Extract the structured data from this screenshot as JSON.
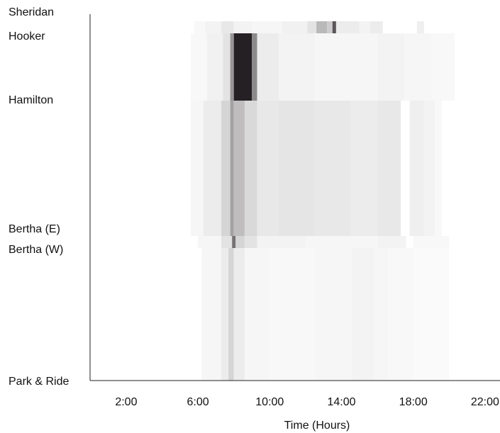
{
  "chart_data": {
    "type": "heatmap",
    "title": "",
    "xlabel": "Time (Hours)",
    "ylabel": "",
    "xlim": [
      0,
      24
    ],
    "x_ticks": [
      {
        "value": 2,
        "label": "2:00"
      },
      {
        "value": 6,
        "label": "6:00"
      },
      {
        "value": 10,
        "label": "10:00"
      },
      {
        "value": 14,
        "label": "14:00"
      },
      {
        "value": 18,
        "label": "18:00"
      },
      {
        "value": 22,
        "label": "22:00"
      }
    ],
    "y_stops": [
      "Sheridan",
      "Hooker",
      "Hamilton",
      "Bertha (E)",
      "Bertha (W)",
      "Park & Ride"
    ],
    "grid": false,
    "color_scale": {
      "low": "#ffffff",
      "high": "#1a1418"
    },
    "segments": [
      {
        "from": "Sheridan",
        "to": "Hooker",
        "cells": [
          {
            "start": 5.8,
            "end": 6.4,
            "value": 0.03
          },
          {
            "start": 6.4,
            "end": 7.3,
            "value": 0.05
          },
          {
            "start": 7.3,
            "end": 8.0,
            "value": 0.1
          },
          {
            "start": 8.0,
            "end": 9.0,
            "value": 0.05
          },
          {
            "start": 9.0,
            "end": 10.7,
            "value": 0.04
          },
          {
            "start": 10.7,
            "end": 12.1,
            "value": 0.06
          },
          {
            "start": 12.1,
            "end": 12.6,
            "value": 0.12
          },
          {
            "start": 12.6,
            "end": 13.2,
            "value": 0.3
          },
          {
            "start": 13.2,
            "end": 13.5,
            "value": 0.22
          },
          {
            "start": 13.5,
            "end": 13.7,
            "value": 0.72
          },
          {
            "start": 13.7,
            "end": 15.0,
            "value": 0.08
          },
          {
            "start": 15.0,
            "end": 15.6,
            "value": 0.05
          },
          {
            "start": 15.6,
            "end": 16.3,
            "value": 0.08
          },
          {
            "start": 16.3,
            "end": 18.2,
            "value": 0.0
          },
          {
            "start": 18.2,
            "end": 18.6,
            "value": 0.07
          }
        ]
      },
      {
        "from": "Hooker",
        "to": "Hamilton",
        "cells": [
          {
            "start": 5.6,
            "end": 6.5,
            "value": 0.03
          },
          {
            "start": 6.5,
            "end": 7.4,
            "value": 0.06
          },
          {
            "start": 7.4,
            "end": 7.8,
            "value": 0.12
          },
          {
            "start": 7.8,
            "end": 8.0,
            "value": 0.45
          },
          {
            "start": 8.0,
            "end": 9.0,
            "value": 0.95
          },
          {
            "start": 9.0,
            "end": 9.3,
            "value": 0.5
          },
          {
            "start": 9.3,
            "end": 10.5,
            "value": 0.08
          },
          {
            "start": 10.5,
            "end": 12.5,
            "value": 0.05
          },
          {
            "start": 12.5,
            "end": 16.0,
            "value": 0.04
          },
          {
            "start": 16.0,
            "end": 17.5,
            "value": 0.05
          },
          {
            "start": 17.5,
            "end": 19.0,
            "value": 0.04
          },
          {
            "start": 19.0,
            "end": 20.3,
            "value": 0.03
          }
        ]
      },
      {
        "from": "Hamilton",
        "to": "Bertha (E)",
        "cells": [
          {
            "start": 5.6,
            "end": 6.3,
            "value": 0.04
          },
          {
            "start": 6.3,
            "end": 7.3,
            "value": 0.08
          },
          {
            "start": 7.3,
            "end": 7.8,
            "value": 0.18
          },
          {
            "start": 7.8,
            "end": 8.0,
            "value": 0.4
          },
          {
            "start": 8.0,
            "end": 8.6,
            "value": 0.28
          },
          {
            "start": 8.6,
            "end": 9.3,
            "value": 0.16
          },
          {
            "start": 9.3,
            "end": 10.5,
            "value": 0.1
          },
          {
            "start": 10.5,
            "end": 12.5,
            "value": 0.11
          },
          {
            "start": 12.5,
            "end": 14.5,
            "value": 0.1
          },
          {
            "start": 14.5,
            "end": 16.0,
            "value": 0.08
          },
          {
            "start": 16.0,
            "end": 17.3,
            "value": 0.1
          },
          {
            "start": 17.3,
            "end": 17.8,
            "value": 0.0
          },
          {
            "start": 17.8,
            "end": 18.6,
            "value": 0.07
          },
          {
            "start": 18.6,
            "end": 19.2,
            "value": 0.05
          },
          {
            "start": 19.2,
            "end": 19.6,
            "value": 0.03
          }
        ]
      },
      {
        "from": "Bertha (E)",
        "to": "Bertha (W)",
        "cells": [
          {
            "start": 6.0,
            "end": 7.3,
            "value": 0.04
          },
          {
            "start": 7.3,
            "end": 7.9,
            "value": 0.12
          },
          {
            "start": 7.9,
            "end": 8.1,
            "value": 0.6
          },
          {
            "start": 8.1,
            "end": 8.6,
            "value": 0.18
          },
          {
            "start": 8.6,
            "end": 9.3,
            "value": 0.12
          },
          {
            "start": 9.3,
            "end": 12.0,
            "value": 0.05
          },
          {
            "start": 12.0,
            "end": 16.0,
            "value": 0.04
          },
          {
            "start": 16.0,
            "end": 17.6,
            "value": 0.05
          },
          {
            "start": 17.6,
            "end": 18.0,
            "value": 0.0
          },
          {
            "start": 18.0,
            "end": 20.0,
            "value": 0.03
          }
        ]
      },
      {
        "from": "Bertha (W)",
        "to": "Park & Ride",
        "cells": [
          {
            "start": 6.2,
            "end": 7.3,
            "value": 0.04
          },
          {
            "start": 7.3,
            "end": 7.7,
            "value": 0.08
          },
          {
            "start": 7.7,
            "end": 8.0,
            "value": 0.18
          },
          {
            "start": 8.0,
            "end": 8.6,
            "value": 0.08
          },
          {
            "start": 8.6,
            "end": 10.0,
            "value": 0.04
          },
          {
            "start": 10.0,
            "end": 12.5,
            "value": 0.03
          },
          {
            "start": 12.5,
            "end": 14.6,
            "value": 0.04
          },
          {
            "start": 14.6,
            "end": 15.8,
            "value": 0.05
          },
          {
            "start": 15.8,
            "end": 16.6,
            "value": 0.04
          },
          {
            "start": 16.6,
            "end": 18.0,
            "value": 0.03
          },
          {
            "start": 18.0,
            "end": 20.0,
            "value": 0.02
          }
        ]
      }
    ]
  }
}
